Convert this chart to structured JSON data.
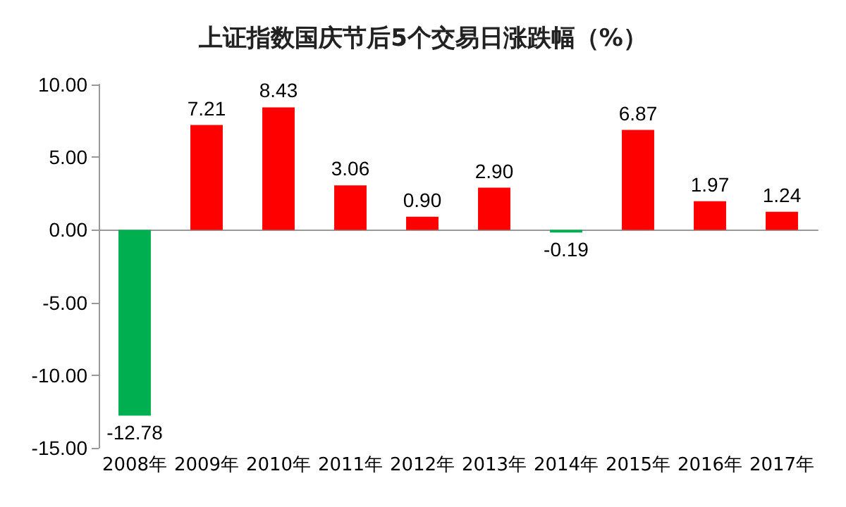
{
  "chart_data": {
    "type": "bar",
    "title": "上证指数国庆节后5个交易日涨跌幅（%）",
    "categories": [
      "2008年",
      "2009年",
      "2010年",
      "2011年",
      "2012年",
      "2013年",
      "2014年",
      "2015年",
      "2016年",
      "2017年"
    ],
    "values": [
      -12.78,
      7.21,
      8.43,
      3.06,
      0.9,
      2.9,
      -0.19,
      6.87,
      1.97,
      1.24
    ],
    "colors": [
      "#00b050",
      "#ff0000",
      "#ff0000",
      "#ff0000",
      "#ff0000",
      "#ff0000",
      "#00b050",
      "#ff0000",
      "#ff0000",
      "#ff0000"
    ],
    "value_labels": [
      "-12.78",
      "7.21",
      "8.43",
      "3.06",
      "0.90",
      "2.90",
      "-0.19",
      "6.87",
      "1.97",
      "1.24"
    ],
    "ylim": [
      -15,
      10
    ],
    "yticks": [
      {
        "value": -15,
        "label": "-15.00"
      },
      {
        "value": -10,
        "label": "-10.00"
      },
      {
        "value": -5,
        "label": "-5.00"
      },
      {
        "value": 0,
        "label": "0.00"
      },
      {
        "value": 5,
        "label": "5.00"
      },
      {
        "value": 10,
        "label": "10.00"
      }
    ],
    "ylabel": null
  }
}
